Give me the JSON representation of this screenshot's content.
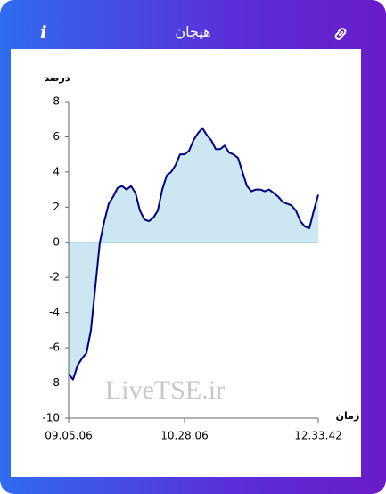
{
  "header": {
    "title": "هیجان",
    "info": "i"
  },
  "chart_data": {
    "type": "area",
    "y_label": "درصد",
    "x_label": "زمان",
    "watermark": "LiveTSE.ir",
    "values": [
      -7.5,
      -7.8,
      -7,
      -6.6,
      -6.3,
      -5,
      -2.5,
      0,
      1.2,
      2.2,
      2.6,
      3.1,
      3.2,
      3,
      3.2,
      2.8,
      1.8,
      1.3,
      1.2,
      1.4,
      1.8,
      3,
      3.8,
      4,
      4.4,
      5,
      5,
      5.2,
      5.8,
      6.2,
      6.5,
      6.1,
      5.8,
      5.3,
      5.3,
      5.5,
      5.1,
      5,
      4.8,
      4,
      3.2,
      2.9,
      3,
      3,
      2.9,
      3,
      2.8,
      2.6,
      2.3,
      2.2,
      2.1,
      1.8,
      1.2,
      0.9,
      0.8,
      1.8,
      2.7
    ],
    "line_color": "#000080",
    "fill_color": "#cce6f2",
    "ylim": [
      -10,
      8
    ],
    "yticks": [
      -10,
      -8,
      -6,
      -4,
      -2,
      0,
      2,
      4,
      6,
      8
    ],
    "xticks": [
      {
        "value": 0,
        "label": "09.05.06"
      },
      {
        "value": 26,
        "label": "10.28.06"
      },
      {
        "value": 56,
        "label": "12.33.42"
      }
    ]
  }
}
